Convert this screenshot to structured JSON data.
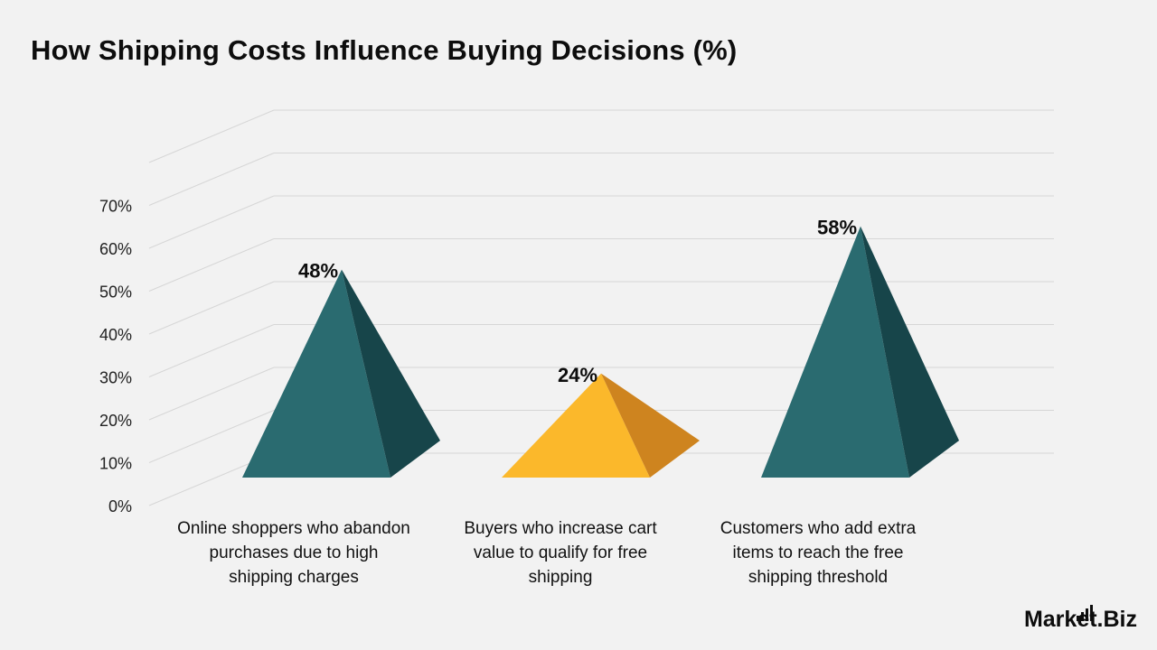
{
  "chart_data": {
    "type": "bar",
    "title": "How Shipping Costs Influence Buying Decisions (%)",
    "categories": [
      "Online shoppers who abandon purchases due to high shipping charges",
      "Buyers who increase cart value to qualify for free shipping",
      "Customers who add extra items to reach the free shipping threshold"
    ],
    "series": [
      {
        "values": [
          48,
          24,
          58
        ],
        "data_labels": [
          "48%",
          "24%",
          "58%"
        ],
        "colors": [
          "#2a6b70",
          "#fbb82b",
          "#2a6b70"
        ],
        "shade_colors": [
          "#17454a",
          "#ce841f",
          "#17454a"
        ]
      }
    ],
    "yticks": [
      "0%",
      "10%",
      "20%",
      "30%",
      "40%",
      "50%",
      "60%",
      "70%"
    ],
    "ylim": [
      0,
      70
    ],
    "grid": true,
    "mark_shape": "3d-pyramid"
  },
  "brand": {
    "text": "Market.Biz",
    "icon": "bar-chart-icon"
  }
}
